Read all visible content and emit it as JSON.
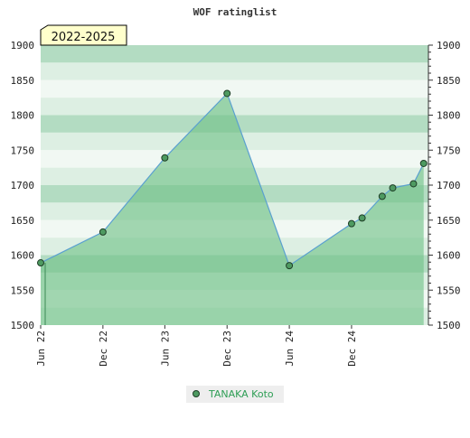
{
  "chart_data": {
    "type": "area",
    "title": "WOF ratinglist",
    "badge": "2022-2025",
    "xlabel": "",
    "ylabel": "",
    "ylim": [
      1500,
      1900
    ],
    "y_ticks": [
      1500,
      1550,
      1600,
      1650,
      1700,
      1750,
      1800,
      1850,
      1900
    ],
    "x_range": [
      "2022-06-01",
      "2025-07-15"
    ],
    "x_ticks": [
      {
        "date": "2022-06-01",
        "label": "Jun 22"
      },
      {
        "date": "2022-12-01",
        "label": "Dec 22"
      },
      {
        "date": "2023-06-01",
        "label": "Jun 23"
      },
      {
        "date": "2023-12-01",
        "label": "Dec 23"
      },
      {
        "date": "2024-06-01",
        "label": "Jun 24"
      },
      {
        "date": "2024-12-01",
        "label": "Dec 24"
      }
    ],
    "grid": true,
    "legend_position": "bottom-center",
    "colors": {
      "line": "#5aa0d0",
      "fill": "#6cbf84",
      "band_dark": "#b3dcc2",
      "band_light": "#ddefe3",
      "band_lightest": "#f1f8f3",
      "marker_fill": "#4e9a61",
      "marker_stroke": "#1e3d26",
      "badge_fill": "#ffffcc",
      "legend_bg": "#eeeeee",
      "legend_text": "#2e9e55"
    },
    "series": [
      {
        "name": "TANAKA Koto",
        "points": [
          {
            "x": "2022-06-01",
            "y": 1589
          },
          {
            "x": "2022-12-01",
            "y": 1633
          },
          {
            "x": "2023-06-01",
            "y": 1739
          },
          {
            "x": "2023-12-01",
            "y": 1831
          },
          {
            "x": "2024-06-01",
            "y": 1585
          },
          {
            "x": "2024-12-01",
            "y": 1645
          },
          {
            "x": "2025-01-01",
            "y": 1653
          },
          {
            "x": "2025-03-01",
            "y": 1684
          },
          {
            "x": "2025-04-01",
            "y": 1696
          },
          {
            "x": "2025-06-01",
            "y": 1702
          },
          {
            "x": "2025-07-01",
            "y": 1731
          }
        ]
      }
    ]
  }
}
